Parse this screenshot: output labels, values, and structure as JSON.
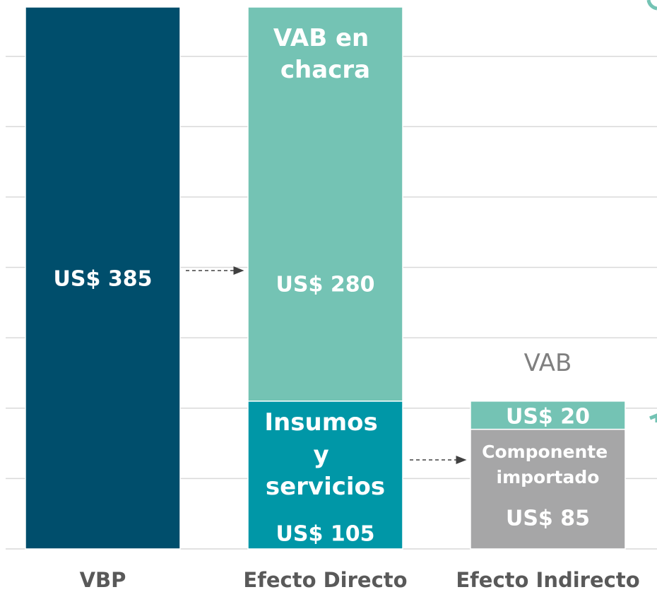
{
  "chart_data": {
    "type": "stacked_bar",
    "categories": [
      "VBP",
      "Efecto Directo",
      "Efecto Indirecto"
    ],
    "series": [
      {
        "color": "#004e6c",
        "values": [
          385,
          null,
          null
        ],
        "value_labels": [
          "US$ 385",
          null,
          null
        ]
      },
      {
        "name": "Insumos y servicios",
        "color": "#0097a7",
        "values": [
          null,
          105,
          null
        ],
        "value_labels": [
          null,
          "US$ 105",
          null
        ]
      },
      {
        "name": "VAB en chacra",
        "color": "#74c3b4",
        "values": [
          null,
          280,
          null
        ],
        "value_labels": [
          null,
          "US$ 280",
          null
        ]
      },
      {
        "name": "Componente importado",
        "color": "#a6a6a7",
        "values": [
          null,
          null,
          85
        ],
        "value_labels": [
          null,
          null,
          "US$ 85"
        ]
      },
      {
        "name": "VAB",
        "color": "#74c3b4",
        "values": [
          null,
          null,
          20
        ],
        "value_labels": [
          null,
          null,
          "US$ 20"
        ]
      }
    ],
    "ylim": [
      0,
      390
    ],
    "yticks": [
      0,
      50,
      100,
      150,
      200,
      250,
      300,
      350
    ],
    "grid": true
  }
}
